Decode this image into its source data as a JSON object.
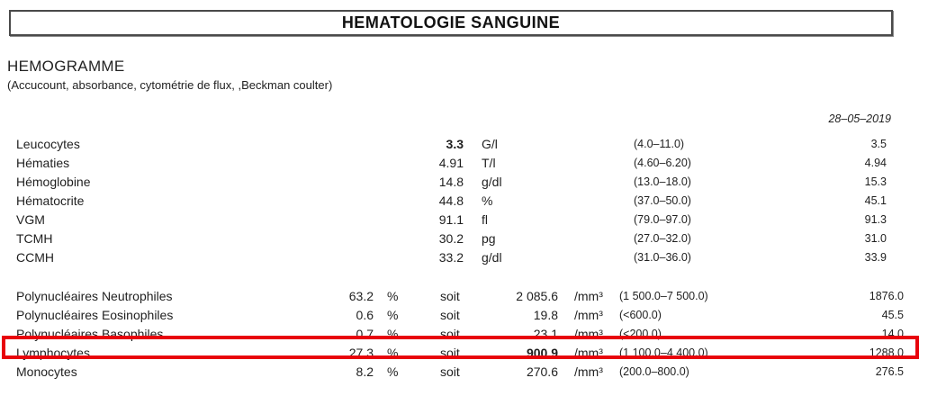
{
  "title": "HEMATOLOGIE SANGUINE",
  "section": {
    "heading": "HEMOGRAMME",
    "method": "(Accucount, absorbance, cytométrie de flux, ,Beckman coulter)"
  },
  "previous_date": "28–05–2019",
  "highlight_color": "#e8030c",
  "cbc_rows": [
    {
      "name": "Leucocytes",
      "value": "3.3",
      "unit": "G/l",
      "range": "(4.0–11.0)",
      "previous": "3.5"
    },
    {
      "name": "Hématies",
      "value": "4.91",
      "unit": "T/l",
      "range": "(4.60–6.20)",
      "previous": "4.94"
    },
    {
      "name": "Hémoglobine",
      "value": "14.8",
      "unit": "g/dl",
      "range": "(13.0–18.0)",
      "previous": "15.3"
    },
    {
      "name": "Hématocrite",
      "value": "44.8",
      "unit": "%",
      "range": "(37.0–50.0)",
      "previous": "45.1"
    },
    {
      "name": "VGM",
      "value": "91.1",
      "unit": "fl",
      "range": "(79.0–97.0)",
      "previous": "91.3"
    },
    {
      "name": "TCMH",
      "value": "30.2",
      "unit": "pg",
      "range": "(27.0–32.0)",
      "previous": "31.0"
    },
    {
      "name": "CCMH",
      "value": "33.2",
      "unit": "g/dl",
      "range": "(31.0–36.0)",
      "previous": "33.9"
    }
  ],
  "diff_rows": [
    {
      "name": "Polynucléaires Neutrophiles",
      "percent": "63.2",
      "percent_unit": "%",
      "soit": "soit",
      "value": "2 085.6",
      "unit": "/mm³",
      "range": "(1 500.0–7 500.0)",
      "previous": "1876.0"
    },
    {
      "name": "Polynucléaires Eosinophiles",
      "percent": "0.6",
      "percent_unit": "%",
      "soit": "soit",
      "value": "19.8",
      "unit": "/mm³",
      "range": "(<600.0)",
      "previous": "45.5"
    },
    {
      "name": "Polynucléaires Basophiles",
      "percent": "0.7",
      "percent_unit": "%",
      "soit": "soit",
      "value": "23.1",
      "unit": "/mm³",
      "range": "(<200.0)",
      "previous": "14.0"
    },
    {
      "name": "Lymphocytes",
      "percent": "27.3",
      "percent_unit": "%",
      "soit": "soit",
      "value": "900.9",
      "unit": "/mm³",
      "range": "(1 100.0–4 400.0)",
      "previous": "1288.0"
    },
    {
      "name": "Monocytes",
      "percent": "8.2",
      "percent_unit": "%",
      "soit": "soit",
      "value": "270.6",
      "unit": "/mm³",
      "range": "(200.0–800.0)",
      "previous": "276.5"
    }
  ]
}
